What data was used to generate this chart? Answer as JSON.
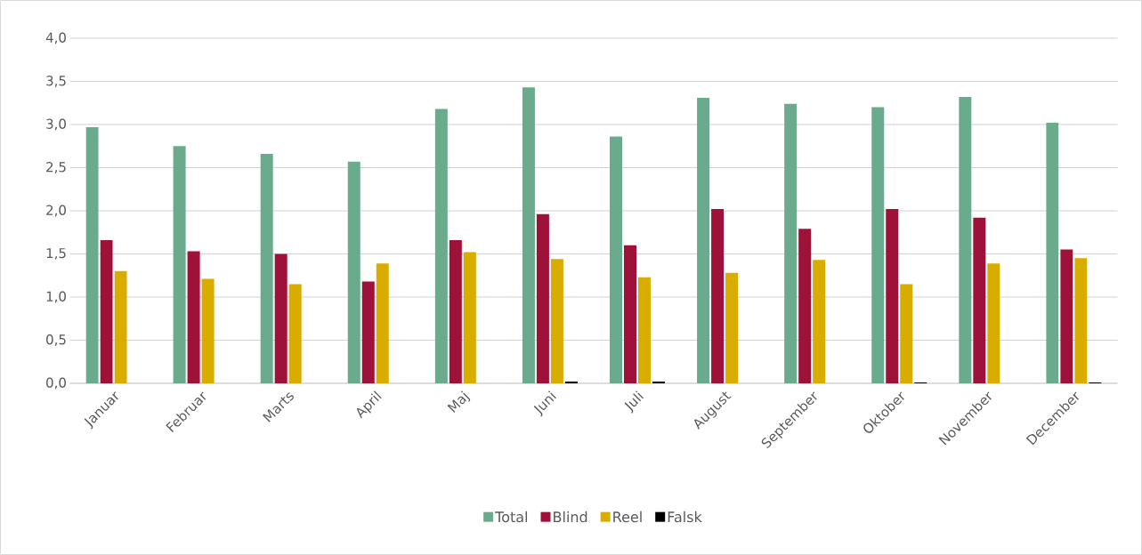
{
  "chart_data": {
    "type": "bar",
    "categories": [
      "Januar",
      "Februar",
      "Marts",
      "April",
      "Maj",
      "Juni",
      "Juli",
      "August",
      "September",
      "Oktober",
      "November",
      "December"
    ],
    "series": [
      {
        "name": "Total",
        "color": "#6aab8e",
        "values": [
          2.97,
          2.75,
          2.66,
          2.57,
          3.18,
          3.43,
          2.86,
          3.31,
          3.24,
          3.2,
          3.32,
          3.02
        ]
      },
      {
        "name": "Blind",
        "color": "#9e1239",
        "values": [
          1.66,
          1.53,
          1.5,
          1.18,
          1.66,
          1.96,
          1.6,
          2.02,
          1.79,
          2.02,
          1.92,
          1.55
        ]
      },
      {
        "name": "Reel",
        "color": "#d9ac00",
        "values": [
          1.3,
          1.21,
          1.15,
          1.39,
          1.52,
          1.44,
          1.23,
          1.28,
          1.43,
          1.15,
          1.39,
          1.45
        ]
      },
      {
        "name": "Falsk",
        "color": "#000000",
        "values": [
          0,
          0,
          0,
          0,
          0,
          0.02,
          0.02,
          0,
          0,
          0.01,
          0,
          0.01
        ]
      }
    ],
    "ylim": [
      0,
      4
    ],
    "yticks": [
      {
        "value": 0,
        "label": "0,0"
      },
      {
        "value": 0.5,
        "label": "0,5"
      },
      {
        "value": 1,
        "label": "1,0"
      },
      {
        "value": 1.5,
        "label": "1,5"
      },
      {
        "value": 2,
        "label": "2,0"
      },
      {
        "value": 2.5,
        "label": "2,5"
      },
      {
        "value": 3,
        "label": "3,0"
      },
      {
        "value": 3.5,
        "label": "3,5"
      },
      {
        "value": 4,
        "label": "4,0"
      }
    ],
    "grid": "y",
    "legend": "bottom"
  }
}
